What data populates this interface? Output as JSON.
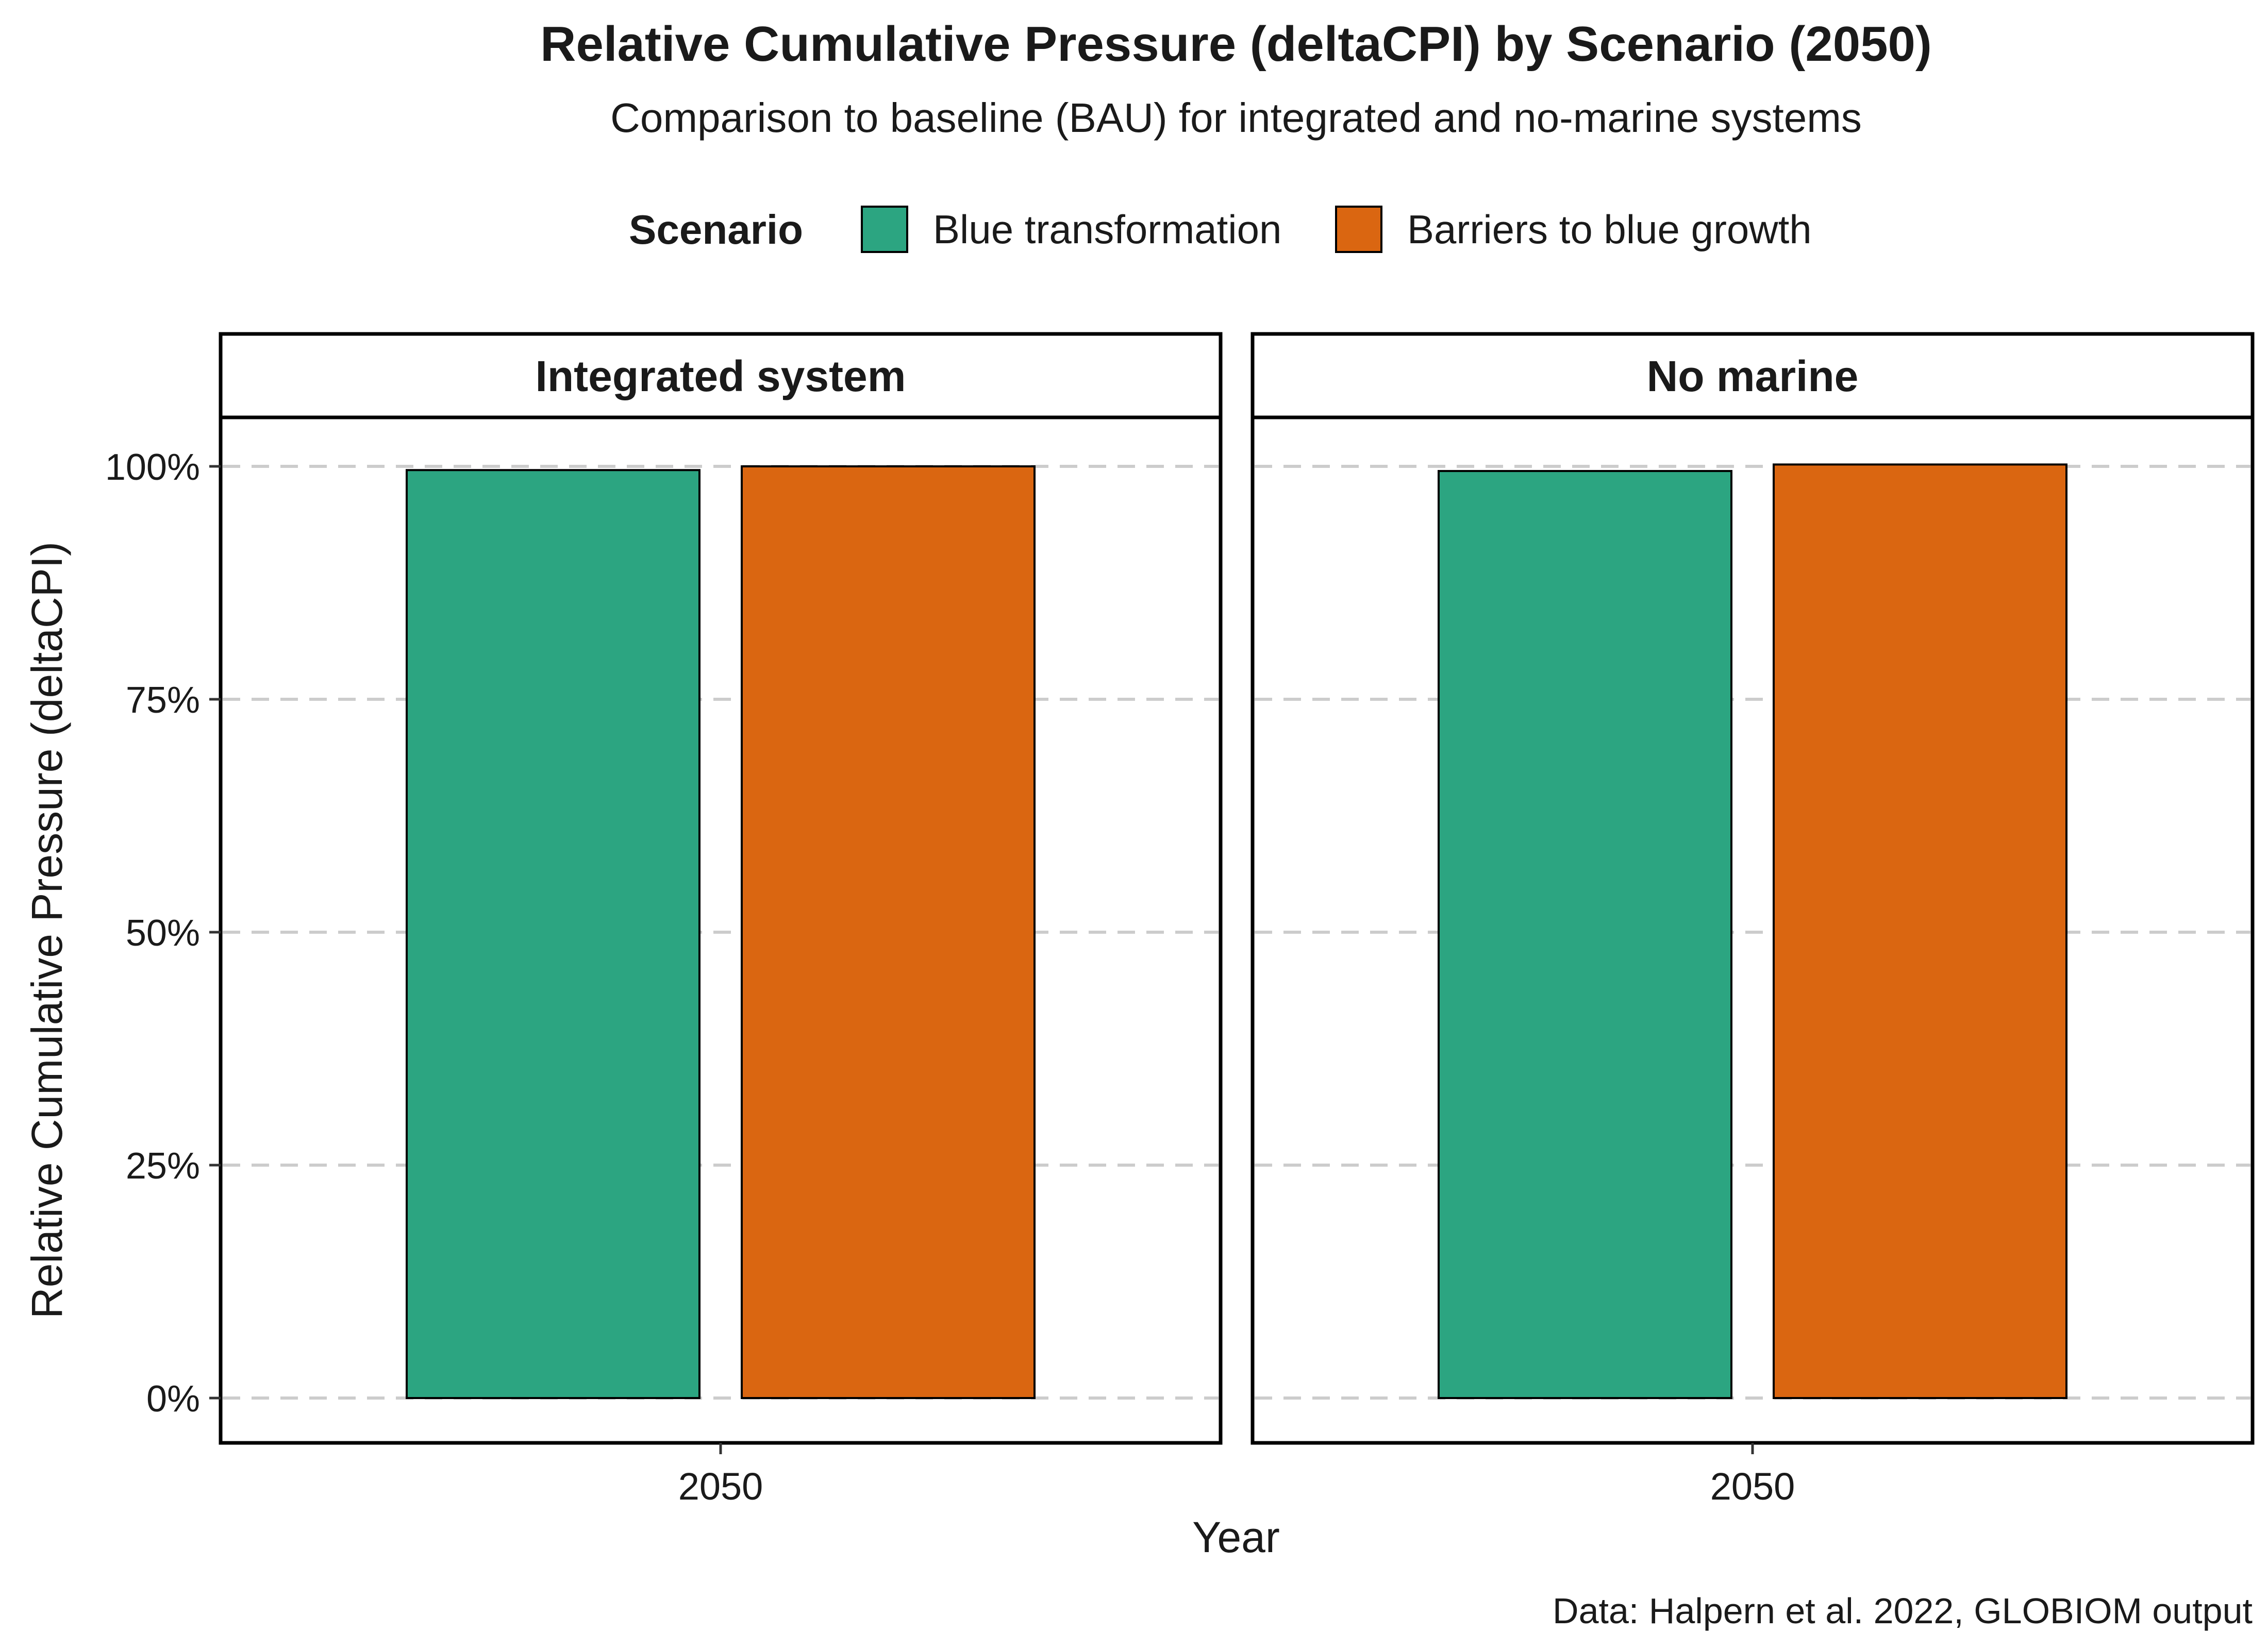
{
  "chart_data": {
    "type": "bar",
    "title": "Relative Cumulative Pressure (deltaCPI) by Scenario (2050)",
    "subtitle": "Comparison to baseline (BAU) for integrated and no-marine systems",
    "caption": "Data: Halpern et al. 2022, GLOBIOM output",
    "xlabel": "Year",
    "ylabel": "Relative Cumulative Pressure (deltaCPI)",
    "ylim": [
      0,
      1
    ],
    "y_ticks": [
      {
        "value": 0,
        "label": "0%"
      },
      {
        "value": 0.25,
        "label": "25%"
      },
      {
        "value": 0.5,
        "label": "50%"
      },
      {
        "value": 0.75,
        "label": "75%"
      },
      {
        "value": 1,
        "label": "100%"
      }
    ],
    "grid": "horizontal dashed",
    "legend": {
      "title": "Scenario",
      "position": "top",
      "entries": [
        {
          "name": "Blue transformation",
          "color": "#2ca581"
        },
        {
          "name": "Barriers to blue growth",
          "color": "#da6611"
        }
      ]
    },
    "categories": [
      "2050"
    ],
    "facets": [
      {
        "label": "Integrated system",
        "series": [
          {
            "name": "Blue transformation",
            "color": "#2ca581",
            "values": [
              0.996
            ]
          },
          {
            "name": "Barriers to blue growth",
            "color": "#da6611",
            "values": [
              1.0
            ]
          }
        ]
      },
      {
        "label": "No marine",
        "series": [
          {
            "name": "Blue transformation",
            "color": "#2ca581",
            "values": [
              0.995
            ]
          },
          {
            "name": "Barriers to blue growth",
            "color": "#da6611",
            "values": [
              1.002
            ]
          }
        ]
      }
    ]
  }
}
